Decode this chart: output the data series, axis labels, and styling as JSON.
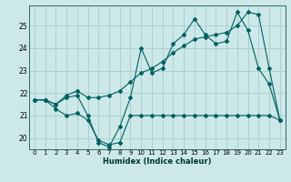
{
  "xlabel": "Humidex (Indice chaleur)",
  "background_color": "#cce8e8",
  "line_color": "#006060",
  "grid_color": "#aacccc",
  "xlim": [
    -0.5,
    23.5
  ],
  "ylim": [
    19.5,
    25.9
  ],
  "yticks": [
    20,
    21,
    22,
    23,
    24,
    25
  ],
  "xticks": [
    0,
    1,
    2,
    3,
    4,
    5,
    6,
    7,
    8,
    9,
    10,
    11,
    12,
    13,
    14,
    15,
    16,
    17,
    18,
    19,
    20,
    21,
    22,
    23
  ],
  "series1_x": [
    0,
    1,
    2,
    3,
    4,
    5,
    6,
    7,
    8,
    9,
    10,
    11,
    12,
    13,
    14,
    15,
    16,
    17,
    18,
    19,
    20,
    21,
    22,
    23
  ],
  "series1_y": [
    21.7,
    21.7,
    21.5,
    21.8,
    21.9,
    21.0,
    19.8,
    19.6,
    20.5,
    21.8,
    24.0,
    22.9,
    23.1,
    24.2,
    24.6,
    25.3,
    24.6,
    24.2,
    24.3,
    25.6,
    24.8,
    23.1,
    22.4,
    20.8
  ],
  "series2_x": [
    0,
    1,
    2,
    3,
    4,
    5,
    6,
    7,
    8,
    9,
    10,
    11,
    12,
    13,
    14,
    15,
    16,
    17,
    18,
    19,
    20,
    21,
    22,
    23
  ],
  "series2_y": [
    21.7,
    21.7,
    21.3,
    21.0,
    21.1,
    20.8,
    19.9,
    19.7,
    19.8,
    21.0,
    21.0,
    21.0,
    21.0,
    21.0,
    21.0,
    21.0,
    21.0,
    21.0,
    21.0,
    21.0,
    21.0,
    21.0,
    21.0,
    20.8
  ],
  "series3_x": [
    0,
    1,
    2,
    3,
    4,
    5,
    6,
    7,
    8,
    9,
    10,
    11,
    12,
    13,
    14,
    15,
    16,
    17,
    18,
    19,
    20,
    21,
    22,
    23
  ],
  "series3_y": [
    21.7,
    21.7,
    21.5,
    21.9,
    22.1,
    21.8,
    21.8,
    21.9,
    22.1,
    22.5,
    22.9,
    23.1,
    23.4,
    23.8,
    24.1,
    24.4,
    24.5,
    24.6,
    24.7,
    25.0,
    25.6,
    25.5,
    23.1,
    20.8
  ],
  "tick_fontsize": 5.0,
  "xlabel_fontsize": 6.0,
  "marker_size": 2.0
}
